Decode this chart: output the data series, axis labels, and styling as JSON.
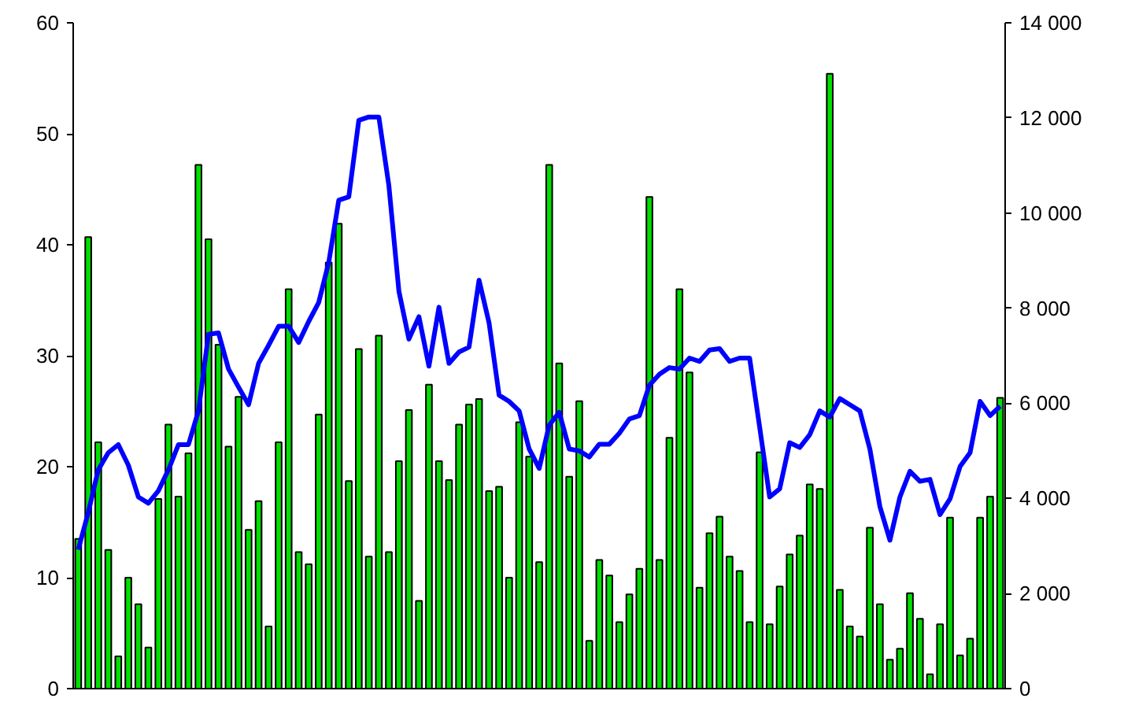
{
  "chart_data": {
    "type": "bar",
    "categories": [
      null,
      null,
      null,
      null,
      null,
      null,
      null,
      null,
      null,
      null,
      null,
      null,
      null,
      null,
      null,
      null,
      null,
      null,
      null,
      null,
      null,
      null,
      null,
      null,
      null,
      null,
      null,
      null,
      null,
      null,
      null,
      null,
      null,
      null,
      null,
      null,
      null,
      null,
      null,
      null,
      null,
      null,
      null,
      null,
      null,
      null,
      null,
      null,
      null,
      null,
      null,
      null,
      null,
      null,
      null,
      null,
      null,
      null,
      null,
      null,
      null,
      null,
      null,
      null,
      null,
      null,
      null,
      null,
      null,
      null,
      null,
      null,
      null,
      null,
      null,
      null,
      null,
      null,
      null,
      null,
      null,
      null,
      null,
      null,
      null,
      null,
      null,
      null,
      null,
      null,
      null,
      null,
      null
    ],
    "ylim": [
      0,
      60
    ],
    "yticks": [
      0,
      10,
      20,
      30,
      40,
      50,
      60
    ],
    "y2lim": [
      0,
      14000
    ],
    "y2ticks": [
      0,
      {
        "value": 2000,
        "label": "2 000"
      },
      {
        "value": 4000,
        "label": "4 000"
      },
      {
        "value": 6000,
        "label": "6 000"
      },
      {
        "value": 8000,
        "label": "8 000"
      },
      {
        "value": 10000,
        "label": "10 000"
      },
      {
        "value": 12000,
        "label": "12 000"
      },
      {
        "value": 14000,
        "label": "14 000"
      }
    ],
    "grid": false,
    "series": [
      {
        "color": "#00e000",
        "values": [
          13.5,
          40.7,
          22.2,
          12.5,
          2.9,
          10,
          7.6,
          3.7,
          17.1,
          23.8,
          17.3,
          21.2,
          47.2,
          40.5,
          31,
          21.8,
          26.3,
          14.3,
          16.9,
          5.6,
          22.2,
          36,
          12.3,
          11.2,
          24.7,
          38.4,
          41.9,
          18.7,
          30.6,
          11.9,
          31.8,
          12.3,
          20.5,
          25.1,
          7.9,
          27.4,
          20.5,
          18.8,
          23.8,
          25.6,
          26.1,
          17.8,
          18.2,
          10,
          24,
          20.9,
          11.4,
          47.2,
          29.3,
          19.1,
          25.9,
          4.3,
          11.6,
          10.2,
          6,
          8.5,
          10.8,
          44.3,
          11.6,
          22.6,
          36,
          28.5,
          9.1,
          14,
          15.5,
          11.9,
          10.6,
          6,
          21.3,
          5.8,
          9.2,
          12.1,
          13.8,
          18.4,
          18,
          55.4,
          8.9,
          5.6,
          4.7,
          14.5,
          7.6,
          2.6,
          3.6,
          8.6,
          6.3,
          1.3,
          5.8,
          15.4,
          3,
          4.5,
          15.4,
          17.3,
          26.2
        ]
      },
      {
        "type": "line",
        "axis": "y2",
        "color": "#0000ff",
        "values": [
          2920,
          3700,
          4600,
          4960,
          5130,
          4700,
          4030,
          3900,
          4160,
          4600,
          5130,
          5130,
          5840,
          7450,
          7480,
          6720,
          6340,
          5970,
          6840,
          7220,
          7620,
          7620,
          7280,
          7720,
          8120,
          8960,
          10270,
          10340,
          11950,
          12020,
          12020,
          10580,
          8360,
          7350,
          7820,
          6780,
          8020,
          6840,
          7080,
          7180,
          8590,
          7690,
          6170,
          6040,
          5840,
          5040,
          4630,
          5540,
          5810,
          5040,
          5000,
          4870,
          5140,
          5140,
          5370,
          5670,
          5740,
          6380,
          6610,
          6750,
          6720,
          6950,
          6880,
          7120,
          7150,
          6880,
          6950,
          6950,
          5500,
          4030,
          4200,
          5170,
          5070,
          5340,
          5840,
          5710,
          6100,
          5970,
          5840,
          5040,
          3830,
          3120,
          4030,
          4570,
          4360,
          4400,
          3660,
          3990,
          4670,
          4960,
          6040,
          5740,
          5940
        ]
      }
    ]
  }
}
